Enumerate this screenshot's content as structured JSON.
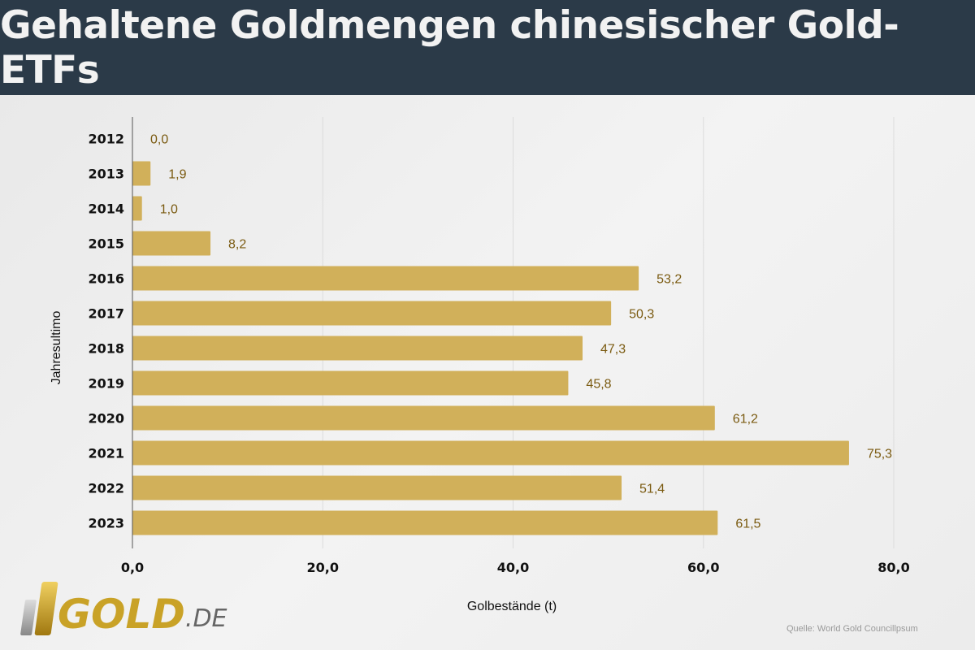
{
  "title": "Gehaltene Goldmengen chinesischer Gold-ETFs",
  "logo": {
    "text": "GOLD",
    "suffix": ".DE"
  },
  "source": "Quelle: World Gold Councillpsum",
  "chart_data": {
    "type": "bar",
    "orientation": "horizontal",
    "title": "Gehaltene Goldmengen chinesischer Gold-ETFs",
    "xlabel": "Golbestände (t)",
    "ylabel": "Jahresultimo",
    "categories": [
      "2012",
      "2013",
      "2014",
      "2015",
      "2016",
      "2017",
      "2018",
      "2019",
      "2020",
      "2021",
      "2022",
      "2023"
    ],
    "values": [
      0.0,
      1.9,
      1.0,
      8.2,
      53.2,
      50.3,
      47.3,
      45.8,
      61.2,
      75.3,
      51.4,
      61.5
    ],
    "data_labels": [
      "0,0",
      "1,9",
      "1,0",
      "8,2",
      "53,2",
      "50,3",
      "47,3",
      "45,8",
      "61,2",
      "75,3",
      "51,4",
      "61,5"
    ],
    "xlim": [
      0,
      80
    ],
    "xticks": [
      0,
      20,
      40,
      60,
      80
    ],
    "xtick_labels": [
      "0,0",
      "20,0",
      "40,0",
      "60,0",
      "80,0"
    ],
    "grid": true,
    "legend": "none",
    "bar_color": "#d1b05a",
    "label_color": "#7a5a10"
  }
}
